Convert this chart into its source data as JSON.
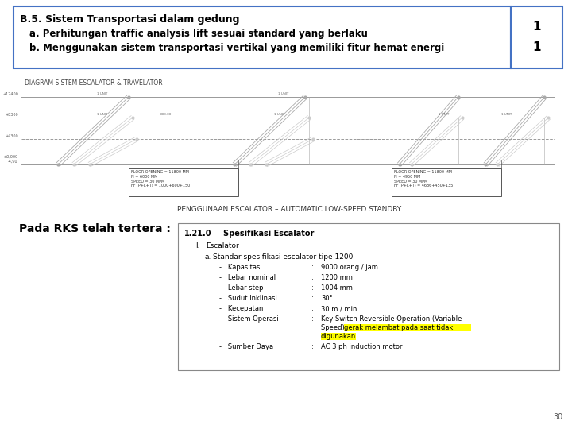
{
  "header_title": "B.5. Sistem Transportasi dalam gedung",
  "header_line2": "a. Perhitungan traffic analysis lift sesuai standard yang berlaku",
  "header_line3": "b. Menggunakan sistem transportasi vertikal yang memiliki fitur hemat energi",
  "diagram_title": "DIAGRAM SISTEM ESCALATOR & TRAVELATOR",
  "mid_label": "PENGGUNAAN ESCALATOR – AUTOMATIC LOW-SPEED STANDBY",
  "pada_rks": "Pada RKS telah tertera :",
  "spec_number": "1.21.0",
  "spec_title": "Spesifikasi Escalator",
  "spec_section": "I.",
  "spec_section2": "Escalator",
  "spec_sub": "a.",
  "spec_sub2": "Standar spesifikasi escalator tipe 1200",
  "spec_items": [
    [
      "Kapasitas",
      "9000 orang / jam"
    ],
    [
      "Lebar nominal",
      "1200 mm"
    ],
    [
      "Lebar step",
      "1004 mm"
    ],
    [
      "Sudut Inklinasi",
      "30°"
    ],
    [
      "Kecepatan",
      "30 m / min"
    ],
    [
      "Sistem Operasi",
      "Key Switch Reversible Operation (Variable\nSpeed),  gerak melambat pada saat tidak\ndigunakan"
    ],
    [
      "Sumber Daya",
      "AC 3 ph induction motor"
    ]
  ],
  "page_num": "30",
  "bg_color": "#ffffff",
  "header_border": "#4472c4",
  "level_labels": [
    "+12400",
    "+8300",
    "+4300",
    "±0,000\n-4,90"
  ],
  "box1_text": "FLOOR OPENING = 11800 MM\nN = 6000 MM\nSPEED = 30 MPM\nFF (P+L+T) = 1000+600+150",
  "box2_text": "FLOOR OPENING = 11800 MM\nN = 4950 MM\nSPEED = 30 MPM\nFF (P+L+T) = 4686+450+135"
}
